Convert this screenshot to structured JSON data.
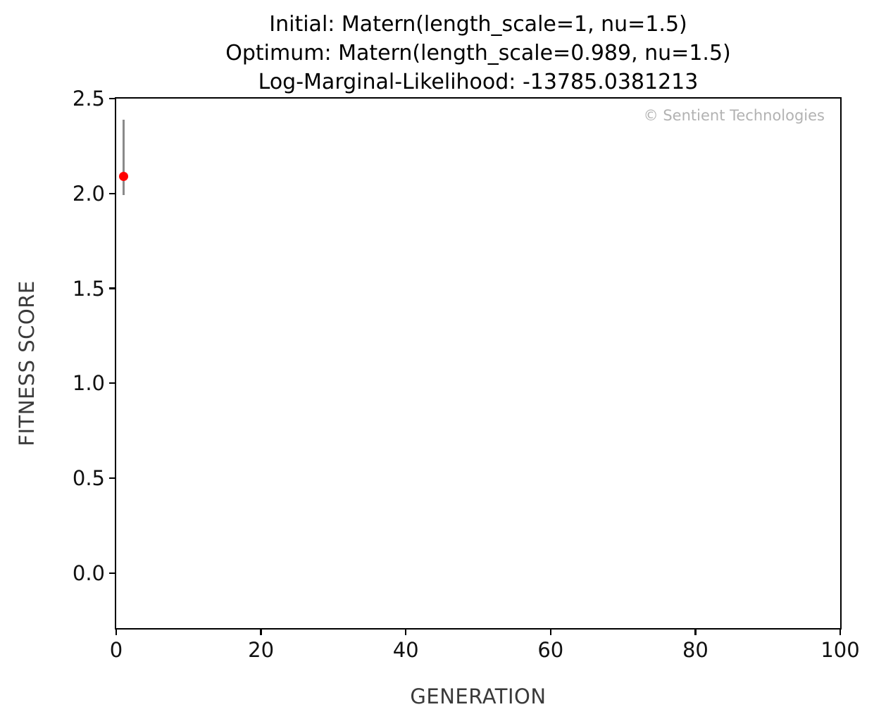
{
  "title": {
    "line1": "Initial: Matern(length_scale=1, nu=1.5)",
    "line2": "Optimum: Matern(length_scale=0.989, nu=1.5)",
    "line3": "Log-Marginal-Likelihood: -13785.0381213"
  },
  "watermark": "© Sentient Technologies",
  "axes": {
    "xlabel": "GENERATION",
    "ylabel": "FITNESS SCORE"
  },
  "chart_data": {
    "type": "scatter",
    "title": "Initial: Matern(length_scale=1, nu=1.5)\nOptimum: Matern(length_scale=0.989, nu=1.5)\nLog-Marginal-Likelihood: -13785.0381213",
    "xlabel": "GENERATION",
    "ylabel": "FITNESS SCORE",
    "xlim": [
      0,
      100
    ],
    "ylim": [
      -0.29,
      2.5
    ],
    "grid": false,
    "legend": null,
    "xticks": [
      {
        "value": 0,
        "label": "0"
      },
      {
        "value": 20,
        "label": "20"
      },
      {
        "value": 40,
        "label": "40"
      },
      {
        "value": 60,
        "label": "60"
      },
      {
        "value": 80,
        "label": "80"
      },
      {
        "value": 100,
        "label": "100"
      }
    ],
    "yticks": [
      {
        "value": 2.5,
        "label": "2.5"
      },
      {
        "value": 2.0,
        "label": "2.0"
      },
      {
        "value": 1.5,
        "label": "1.5"
      },
      {
        "value": 1.0,
        "label": "1.0"
      },
      {
        "value": 0.5,
        "label": "0.5"
      },
      {
        "value": 0.0,
        "label": "0.0"
      }
    ],
    "series": [
      {
        "name": "fitness-score",
        "points": [
          {
            "x": 1,
            "y": 2.09,
            "err_min": 1.99,
            "err_max": 2.39
          }
        ]
      }
    ],
    "colors": {
      "point": "#ff0000",
      "errorbar": "#8a8a8a",
      "spine": "#000000",
      "tick_label": "#111111",
      "axis_label": "#3a3a3a",
      "watermark": "#b2b2b2",
      "background": "#ffffff"
    }
  }
}
